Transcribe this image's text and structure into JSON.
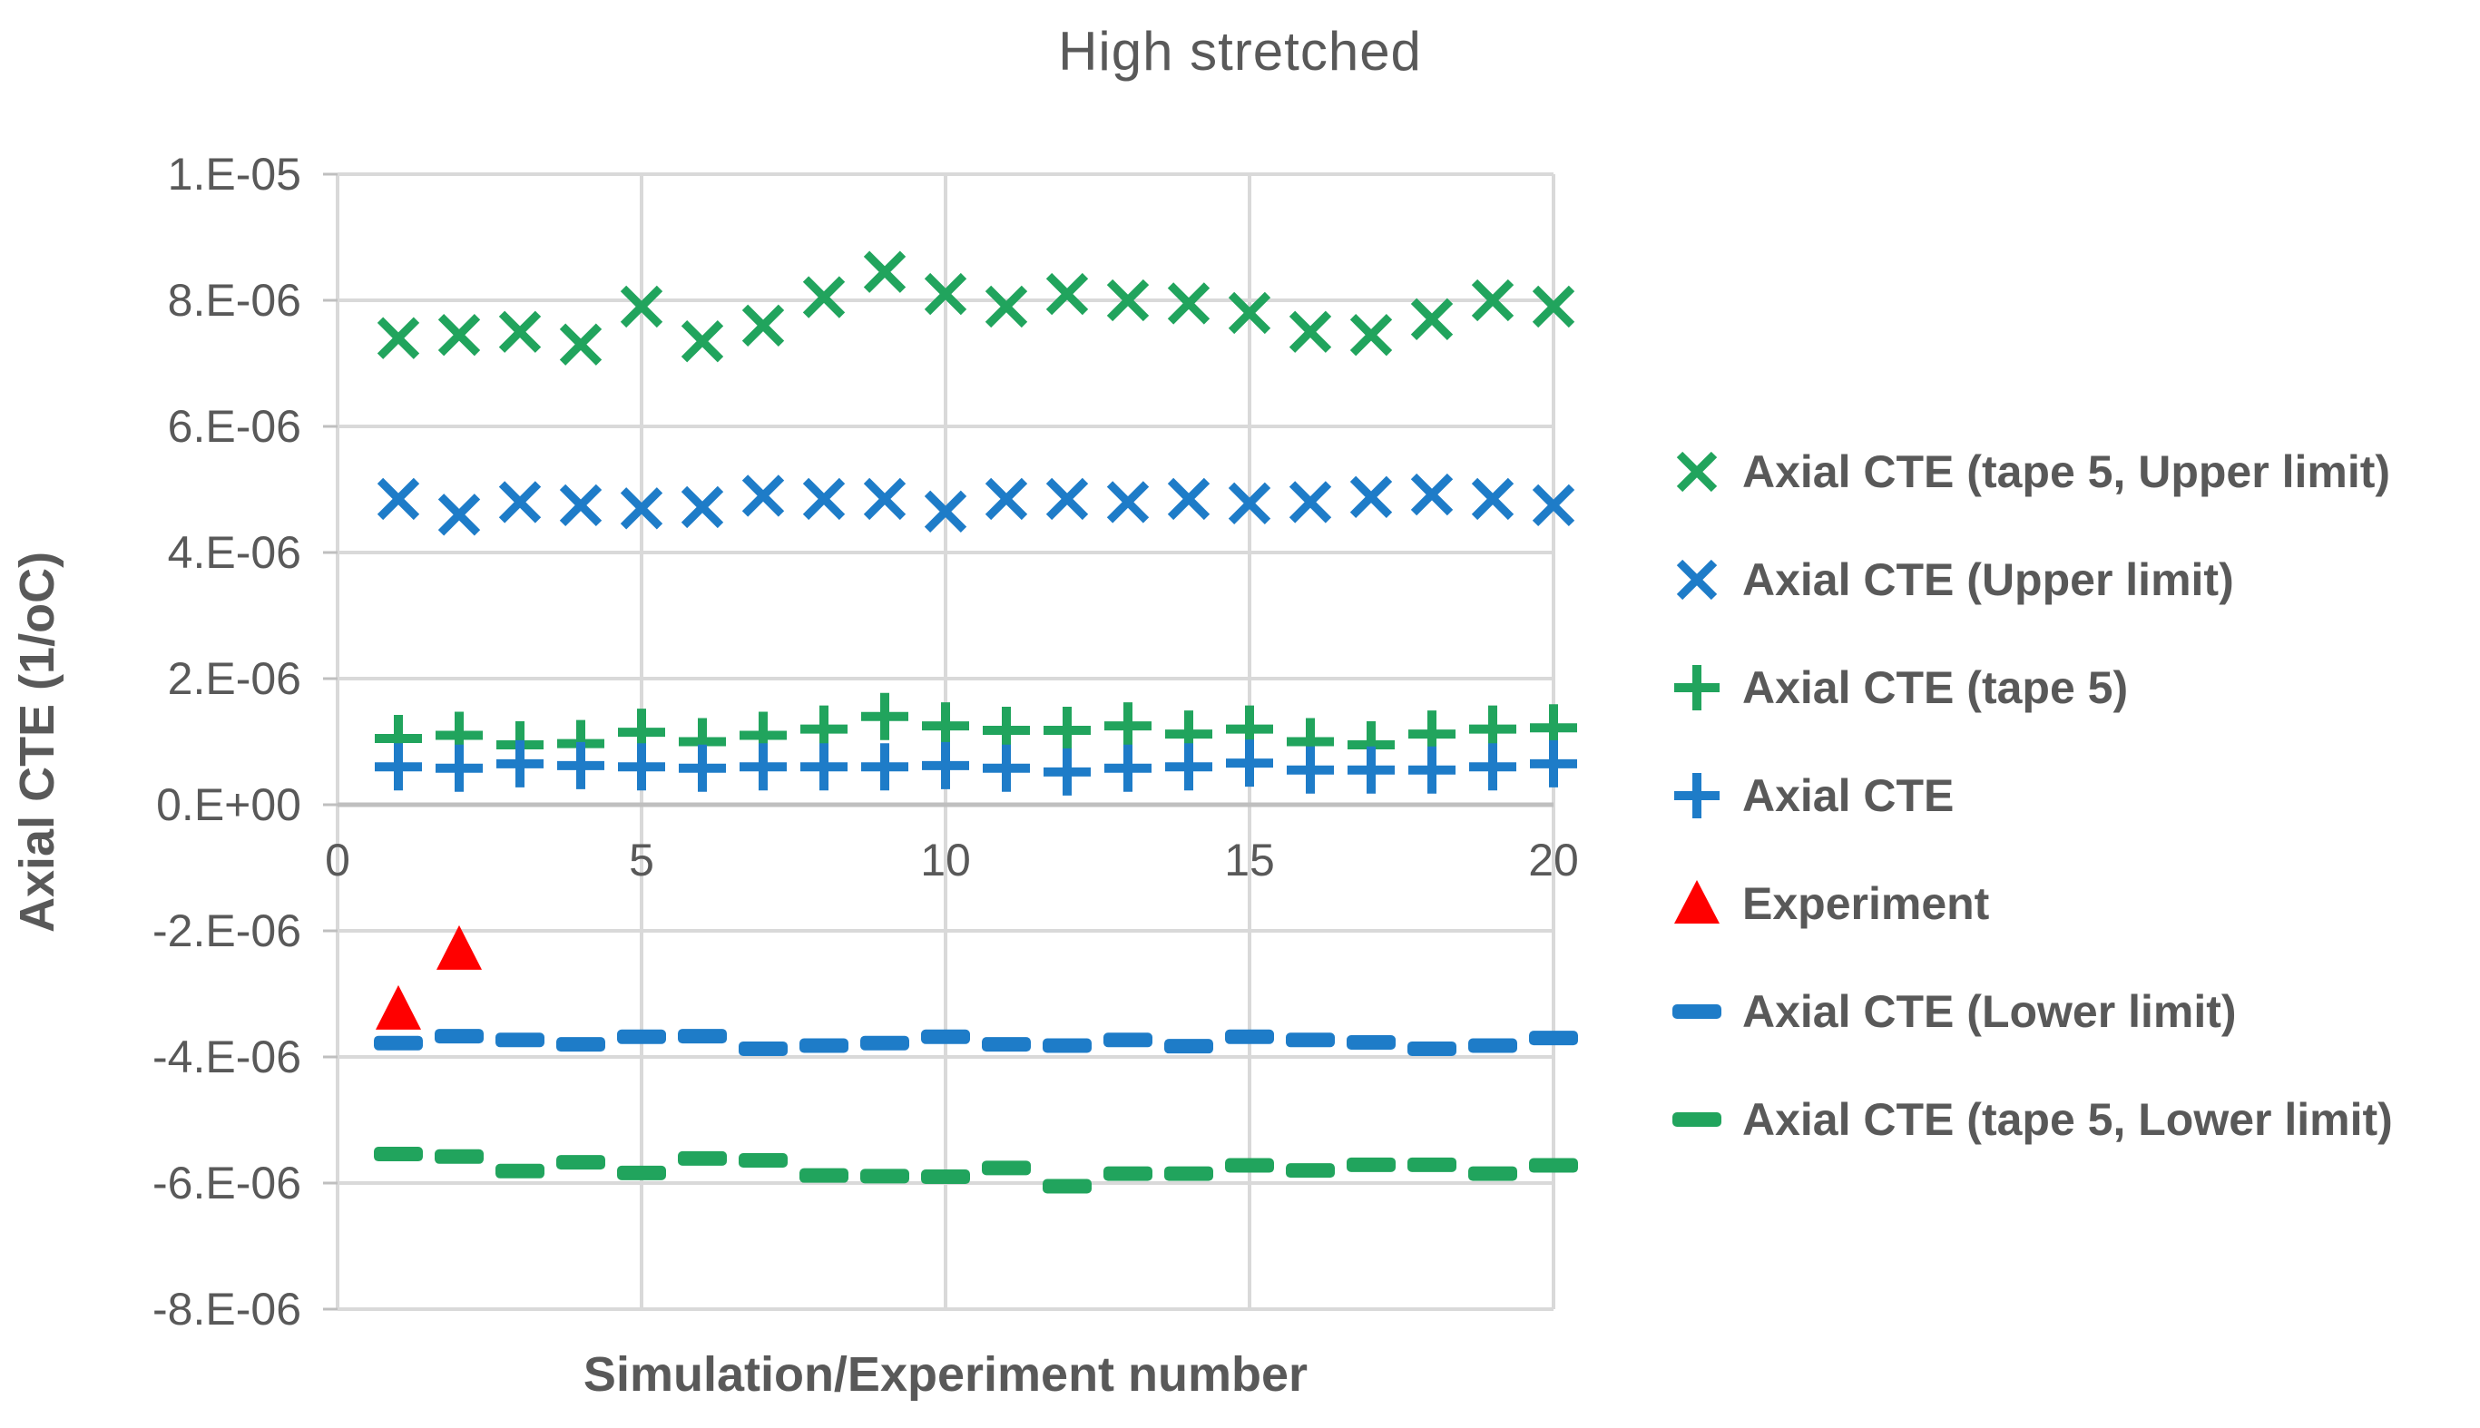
{
  "colors": {
    "green": "#21A45D",
    "blue": "#1E7CC8",
    "red": "#FF0000",
    "gridline": "#D9D9D9",
    "zero_line": "#BFBFBF",
    "axis_text": "#595959"
  },
  "chart_data": {
    "type": "scatter",
    "title": "High stretched",
    "xlabel": "Simulation/Experiment number",
    "ylabel": "Axial CTE (1/oC)",
    "xlim": [
      0,
      20
    ],
    "ylim": [
      -8e-06,
      1e-05
    ],
    "grid": true,
    "legend_position": "right",
    "x_ticks": [
      {
        "value": 0,
        "label": "0"
      },
      {
        "value": 5,
        "label": "5"
      },
      {
        "value": 10,
        "label": "10"
      },
      {
        "value": 15,
        "label": "15"
      },
      {
        "value": 20,
        "label": "20"
      }
    ],
    "y_ticks": [
      {
        "value": 1e-05,
        "label": "1.E-05"
      },
      {
        "value": 8e-06,
        "label": "8.E-06"
      },
      {
        "value": 6e-06,
        "label": "6.E-06"
      },
      {
        "value": 4e-06,
        "label": "4.E-06"
      },
      {
        "value": 2e-06,
        "label": "2.E-06"
      },
      {
        "value": 0,
        "label": "0.E+00"
      },
      {
        "value": -2e-06,
        "label": "-2.E-06"
      },
      {
        "value": -4e-06,
        "label": "-4.E-06"
      },
      {
        "value": -6e-06,
        "label": "-6.E-06"
      },
      {
        "value": -8e-06,
        "label": "-8.E-06"
      }
    ],
    "x": [
      1,
      2,
      3,
      4,
      5,
      6,
      7,
      8,
      9,
      10,
      11,
      12,
      13,
      14,
      15,
      16,
      17,
      18,
      19,
      20
    ],
    "series": [
      {
        "name": "Axial CTE (tape 5, Upper limit)",
        "marker": "x",
        "color": "#21A45D",
        "values": [
          7.4e-06,
          7.45e-06,
          7.5e-06,
          7.3e-06,
          7.9e-06,
          7.35e-06,
          7.6e-06,
          8.05e-06,
          8.45e-06,
          8.1e-06,
          7.9e-06,
          8.1e-06,
          8e-06,
          7.95e-06,
          7.8e-06,
          7.5e-06,
          7.45e-06,
          7.7e-06,
          8e-06,
          7.9e-06
        ]
      },
      {
        "name": "Axial CTE (Upper limit)",
        "marker": "x",
        "color": "#1E7CC8",
        "values": [
          4.85e-06,
          4.6e-06,
          4.8e-06,
          4.75e-06,
          4.7e-06,
          4.72e-06,
          4.9e-06,
          4.85e-06,
          4.85e-06,
          4.65e-06,
          4.85e-06,
          4.85e-06,
          4.8e-06,
          4.85e-06,
          4.78e-06,
          4.8e-06,
          4.88e-06,
          4.92e-06,
          4.85e-06,
          4.75e-06
        ]
      },
      {
        "name": "Axial CTE (tape 5)",
        "marker": "plus",
        "color": "#21A45D",
        "values": [
          1.05e-06,
          1.1e-06,
          9.5e-07,
          9.7e-07,
          1.15e-06,
          1e-06,
          1.1e-06,
          1.2e-06,
          1.4e-06,
          1.25e-06,
          1.18e-06,
          1.18e-06,
          1.25e-06,
          1.12e-06,
          1.2e-06,
          1e-06,
          9.5e-07,
          1.12e-06,
          1.2e-06,
          1.22e-06
        ]
      },
      {
        "name": "Axial CTE",
        "marker": "plus",
        "color": "#1E7CC8",
        "values": [
          6e-07,
          5.8e-07,
          6.5e-07,
          6.2e-07,
          6e-07,
          5.8e-07,
          6e-07,
          6e-07,
          6e-07,
          6.2e-07,
          5.8e-07,
          5.2e-07,
          5.8e-07,
          6e-07,
          6.6e-07,
          5.5e-07,
          5.5e-07,
          5.5e-07,
          6e-07,
          6.5e-07
        ]
      },
      {
        "name": "Experiment",
        "marker": "triangle",
        "color": "#FF0000",
        "x": [
          1,
          2
        ],
        "values": [
          -3.25e-06,
          -2.3e-06
        ]
      },
      {
        "name": "Axial CTE (Lower limit)",
        "marker": "dash",
        "color": "#1E7CC8",
        "values": [
          -3.78e-06,
          -3.67e-06,
          -3.73e-06,
          -3.8e-06,
          -3.68e-06,
          -3.67e-06,
          -3.87e-06,
          -3.82e-06,
          -3.78e-06,
          -3.68e-06,
          -3.8e-06,
          -3.82e-06,
          -3.73e-06,
          -3.83e-06,
          -3.68e-06,
          -3.73e-06,
          -3.77e-06,
          -3.87e-06,
          -3.82e-06,
          -3.7e-06
        ]
      },
      {
        "name": "Axial CTE (tape 5, Lower limit)",
        "marker": "dash",
        "color": "#21A45D",
        "values": [
          -5.54e-06,
          -5.58e-06,
          -5.81e-06,
          -5.67e-06,
          -5.84e-06,
          -5.61e-06,
          -5.64e-06,
          -5.88e-06,
          -5.89e-06,
          -5.9e-06,
          -5.76e-06,
          -6.05e-06,
          -5.85e-06,
          -5.85e-06,
          -5.72e-06,
          -5.8e-06,
          -5.71e-06,
          -5.71e-06,
          -5.85e-06,
          -5.72e-06
        ]
      }
    ]
  }
}
